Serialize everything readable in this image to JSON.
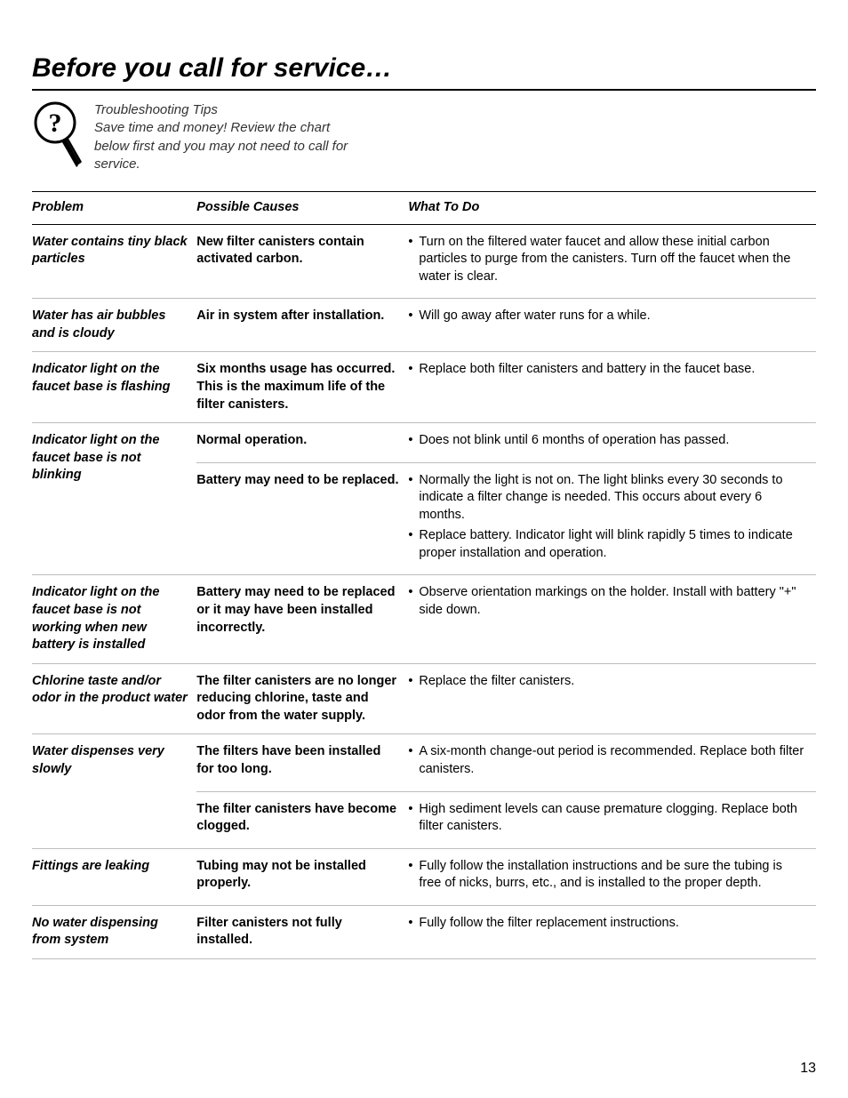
{
  "page": {
    "title": "Before you call for service…",
    "intro": "Troubleshooting Tips\nSave time and money! Review the chart below first and you may not need to call for service.",
    "page_number": "13",
    "colors": {
      "text": "#000000",
      "background": "#ffffff",
      "rule_heavy": "#000000",
      "rule_light": "#bdbdbd"
    },
    "font": {
      "title_size_pt": 30,
      "body_size_pt": 14.5
    }
  },
  "table": {
    "type": "table",
    "columns": [
      {
        "key": "problem",
        "label": "Problem",
        "width_pct": 21
      },
      {
        "key": "cause",
        "label": "Possible Causes",
        "width_pct": 27
      },
      {
        "key": "todo",
        "label": "What To Do",
        "width_pct": 52
      }
    ],
    "rows": [
      {
        "problem": "Water contains tiny black particles",
        "subrows": [
          {
            "cause": "New filter canisters contain activated carbon.",
            "todo": [
              "Turn on the filtered water faucet and allow these initial carbon particles to purge from the canisters. Turn off the faucet when the water is clear."
            ]
          }
        ]
      },
      {
        "problem": "Water has air bubbles and is cloudy",
        "subrows": [
          {
            "cause": "Air in system after installation.",
            "todo": [
              "Will go away after water runs for a while."
            ]
          }
        ]
      },
      {
        "problem": "Indicator light on the faucet base is flashing",
        "subrows": [
          {
            "cause": "Six months usage has occurred. This is the maximum life of the filter canisters.",
            "todo": [
              "Replace both filter canisters and battery in the faucet base."
            ]
          }
        ]
      },
      {
        "problem": "Indicator light on the faucet base is not blinking",
        "subrows": [
          {
            "cause": "Normal operation.",
            "todo": [
              "Does not blink until 6 months of operation has passed."
            ]
          },
          {
            "cause": "Battery may need to be replaced.",
            "todo": [
              "Normally the light is not on. The light blinks every 30 seconds to indicate a filter change is needed. This occurs about every 6 months.",
              "Replace battery. Indicator light will blink rapidly 5 times to indicate proper installation and operation."
            ]
          }
        ]
      },
      {
        "problem": "Indicator light on the faucet base is not working when new battery is installed",
        "subrows": [
          {
            "cause": "Battery may need to be replaced or it may have been installed incorrectly.",
            "todo": [
              "Observe orientation markings on the holder. Install with battery \"+\" side down."
            ]
          }
        ]
      },
      {
        "problem": "Chlorine taste and/or odor in the product water",
        "subrows": [
          {
            "cause": "The filter canisters are no longer reducing chlorine, taste and odor from the water supply.",
            "todo": [
              "Replace the filter canisters."
            ]
          }
        ]
      },
      {
        "problem": "Water dispenses very slowly",
        "subrows": [
          {
            "cause": "The filters have been installed for too long.",
            "todo": [
              "A six-month change-out period is recommended. Replace both filter canisters."
            ]
          },
          {
            "cause": "The filter canisters have become clogged.",
            "todo": [
              "High sediment levels can cause premature clogging. Replace both filter canisters."
            ]
          }
        ]
      },
      {
        "problem": "Fittings are leaking",
        "subrows": [
          {
            "cause": "Tubing may not be installed properly.",
            "todo": [
              "Fully follow the installation instructions and be sure the tubing is free of nicks, burrs, etc., and is installed to the proper depth."
            ]
          }
        ]
      },
      {
        "problem": "No water dispensing from system",
        "subrows": [
          {
            "cause": "Filter canisters not fully installed.",
            "todo": [
              "Fully follow the filter replacement instructions."
            ]
          }
        ]
      }
    ]
  }
}
